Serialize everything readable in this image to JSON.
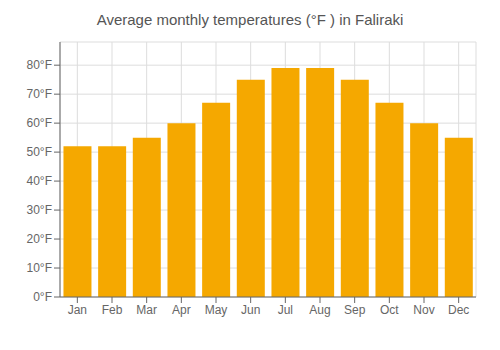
{
  "chart_data": {
    "type": "bar",
    "title": "Average monthly temperatures (°F ) in Faliraki",
    "categories": [
      "Jan",
      "Feb",
      "Mar",
      "Apr",
      "May",
      "Jun",
      "Jul",
      "Aug",
      "Sep",
      "Oct",
      "Nov",
      "Dec"
    ],
    "values": [
      52,
      52,
      55,
      60,
      67,
      75,
      79,
      79,
      75,
      67,
      60,
      55
    ],
    "color": "#F5A800",
    "ylim": [
      0,
      88
    ],
    "yticks": [
      {
        "value": 0,
        "label": "0°F"
      },
      {
        "value": 10,
        "label": "10°F"
      },
      {
        "value": 20,
        "label": "20°F"
      },
      {
        "value": 30,
        "label": "30°F"
      },
      {
        "value": 40,
        "label": "40°F"
      },
      {
        "value": 50,
        "label": "50°F"
      },
      {
        "value": 60,
        "label": "60°F"
      },
      {
        "value": 70,
        "label": "70°F"
      },
      {
        "value": 80,
        "label": "80°F"
      }
    ],
    "grid": true
  }
}
